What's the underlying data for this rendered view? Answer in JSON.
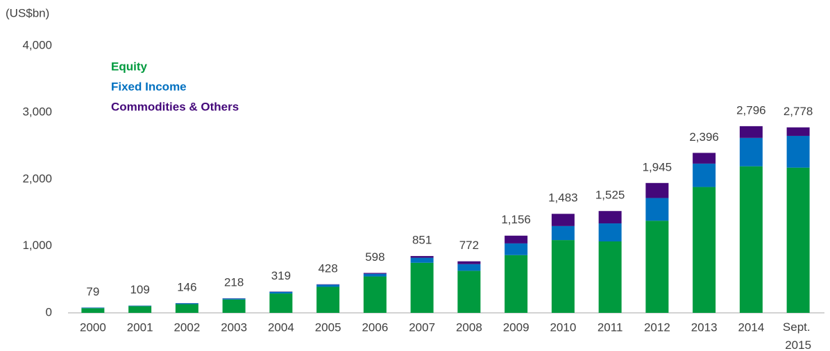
{
  "chart_data": {
    "type": "stacked_bar",
    "axis_unit": "(US$bn)",
    "categories": [
      "2000",
      "2001",
      "2002",
      "2003",
      "2004",
      "2005",
      "2006",
      "2007",
      "2008",
      "2009",
      "2010",
      "2011",
      "2012",
      "2013",
      "2014",
      "Sept. 2015"
    ],
    "series": [
      {
        "name": "Equity",
        "color": "#009a3e",
        "values": [
          70,
          100,
          130,
          200,
          290,
          390,
          545,
          750,
          630,
          865,
          1090,
          1070,
          1380,
          1885,
          2195,
          2175
        ]
      },
      {
        "name": "Fixed Income",
        "color": "#0070c0",
        "values": [
          8,
          8,
          14,
          15,
          25,
          33,
          40,
          75,
          100,
          175,
          210,
          270,
          340,
          350,
          425,
          475
        ]
      },
      {
        "name": "Commodities & Others",
        "color": "#44087a",
        "values": [
          1,
          1,
          2,
          3,
          4,
          5,
          13,
          26,
          42,
          116,
          183,
          185,
          225,
          161,
          176,
          128
        ]
      }
    ],
    "totals": [
      79,
      109,
      146,
      218,
      319,
      428,
      598,
      851,
      772,
      1156,
      1483,
      1525,
      1945,
      2396,
      2796,
      2778
    ],
    "total_labels": [
      "79",
      "109",
      "146",
      "218",
      "319",
      "428",
      "598",
      "851",
      "772",
      "1,156",
      "1,483",
      "1,525",
      "1,945",
      "2,396",
      "2,796",
      "2,778"
    ],
    "ylim": [
      0,
      4000
    ],
    "yticks": [
      0,
      {
        "value": 1000,
        "label": "1,000"
      },
      {
        "value": 2000,
        "label": "2,000"
      },
      {
        "value": 3000,
        "label": "3,000"
      },
      {
        "value": 4000,
        "label": "4,000"
      }
    ],
    "grid": false
  }
}
